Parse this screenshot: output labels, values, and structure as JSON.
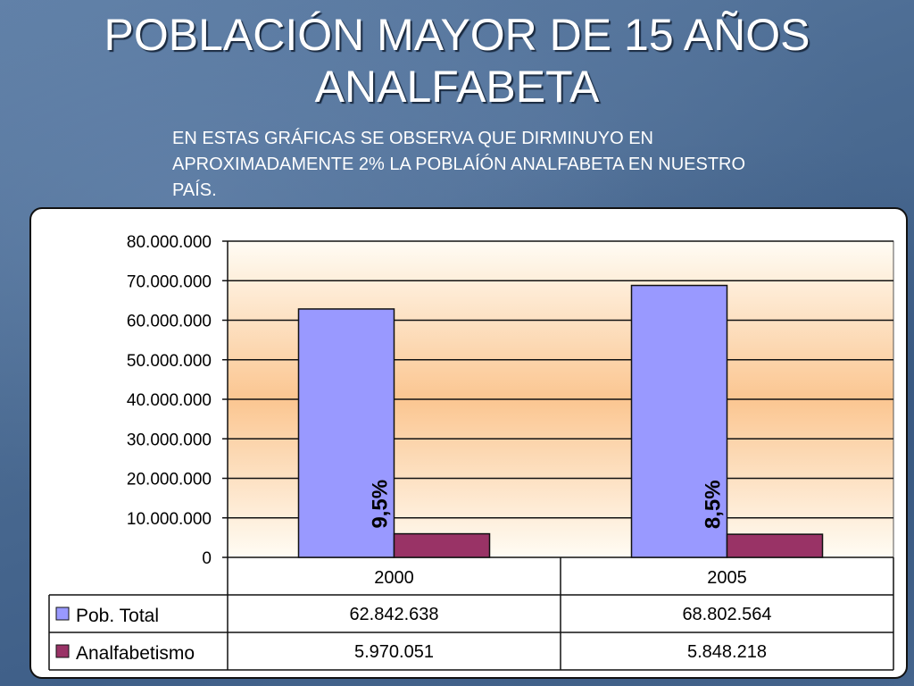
{
  "slide": {
    "title": "POBLACIÓN MAYOR DE 15 AÑOS ANALFABETA",
    "note": "EN ESTAS GRÁFICAS SE OBSERVA QUE DIRMINUYO EN APROXIMADAMENTE 2% LA POBLAÍÓN ANALFABETA EN NUESTRO PAÍS."
  },
  "colors": {
    "pob_total": "#9999ff",
    "analfabetismo": "#993366",
    "plot_bg_top": "#fffcf4",
    "plot_bg_mid": "#fbc691"
  },
  "chart_data": {
    "type": "bar",
    "categories": [
      "2000",
      "2005"
    ],
    "series": [
      {
        "name": "Pob. Total",
        "values": [
          62842638,
          68802564
        ]
      },
      {
        "name": "Analfabetismo",
        "values": [
          5970051,
          5848218
        ]
      }
    ],
    "ylim": [
      0,
      80000000
    ],
    "yticks": [
      "0",
      "10.000.000",
      "20.000.000",
      "30.000.000",
      "40.000.000",
      "50.000.000",
      "60.000.000",
      "70.000.000",
      "80.000.000"
    ],
    "annotations": [
      "9,5%",
      "8,5%"
    ],
    "table": {
      "rows": [
        {
          "label": "Pob. Total",
          "cells": [
            "62.842.638",
            "68.802.564"
          ]
        },
        {
          "label": "Analfabetismo",
          "cells": [
            "5.970.051",
            "5.848.218"
          ]
        }
      ]
    },
    "grid": true,
    "legend": "data-table"
  }
}
